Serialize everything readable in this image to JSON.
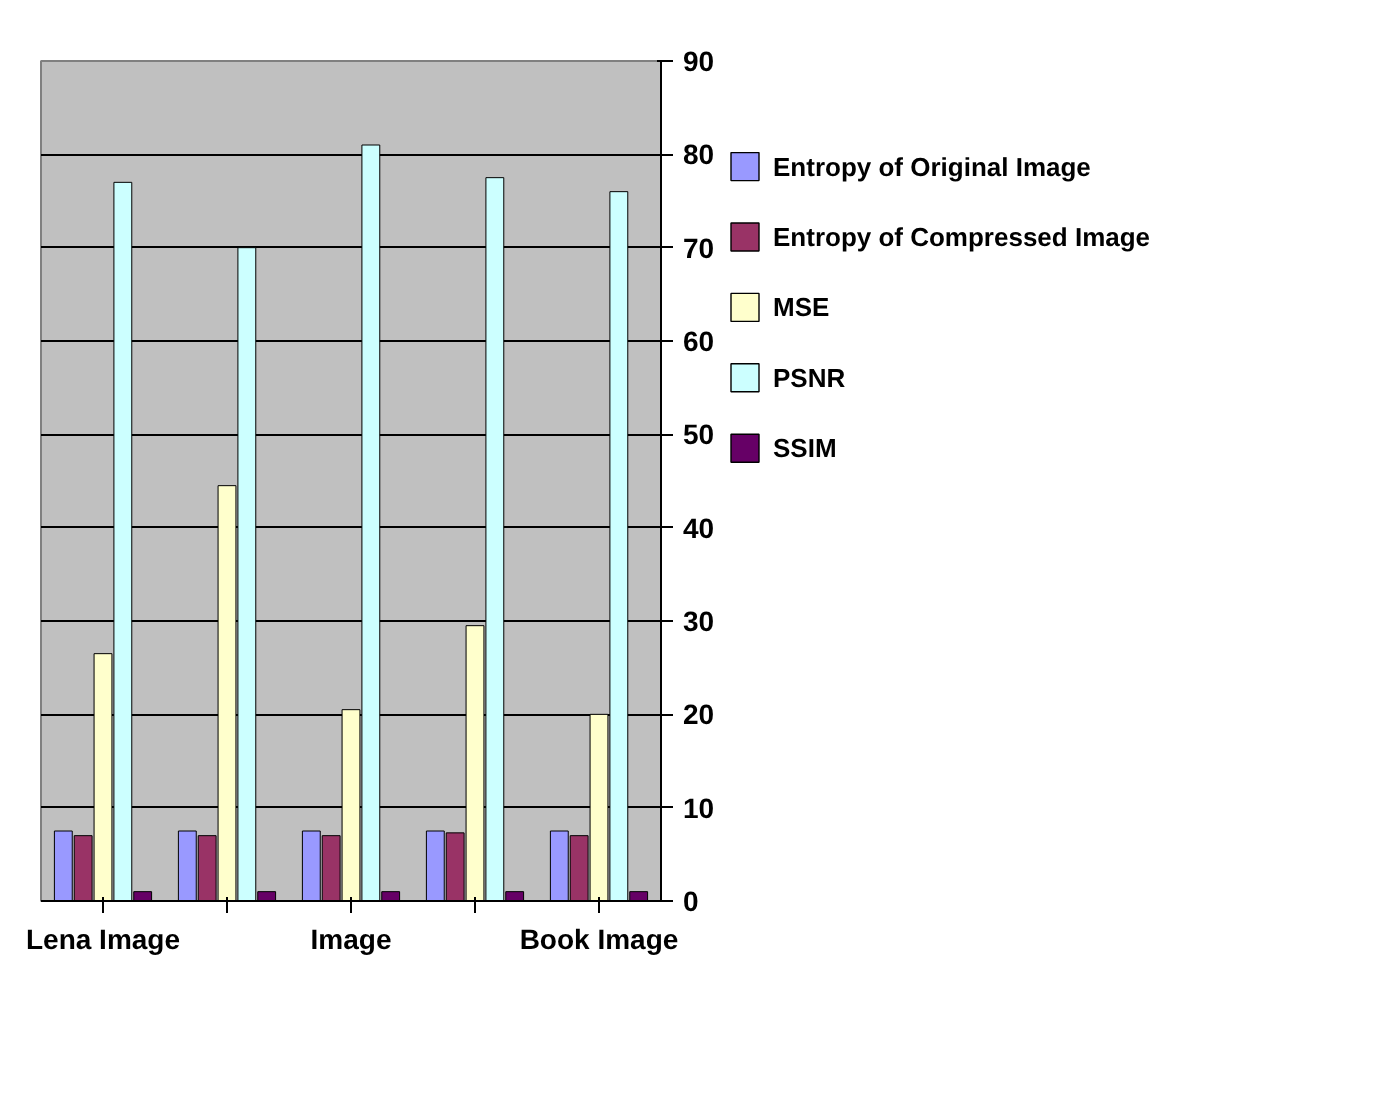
{
  "chart_data": {
    "type": "bar",
    "categories": [
      "Lena Image",
      null,
      "Image",
      null,
      "Book Image"
    ],
    "series": [
      {
        "name": "Entropy of Original Image",
        "color": "#9999ff",
        "values": [
          7.5,
          7.5,
          7.5,
          7.5,
          7.5
        ]
      },
      {
        "name": "Entropy of Compressed Image",
        "color": "#993366",
        "values": [
          7,
          7,
          7,
          7.3,
          7
        ]
      },
      {
        "name": "MSE",
        "color": "#ffffcc",
        "values": [
          26.5,
          44.5,
          20.5,
          29.5,
          20
        ]
      },
      {
        "name": "PSNR",
        "color": "#ccffff",
        "values": [
          77,
          70,
          81,
          77.5,
          76
        ]
      },
      {
        "name": "SSIM",
        "color": "#660066",
        "values": [
          1,
          1,
          1,
          1,
          1
        ]
      }
    ],
    "ylim": [
      0,
      90
    ],
    "yticks": [
      0,
      10,
      20,
      30,
      40,
      50,
      60,
      70,
      80,
      90
    ],
    "grid": "y",
    "legend": "right"
  }
}
